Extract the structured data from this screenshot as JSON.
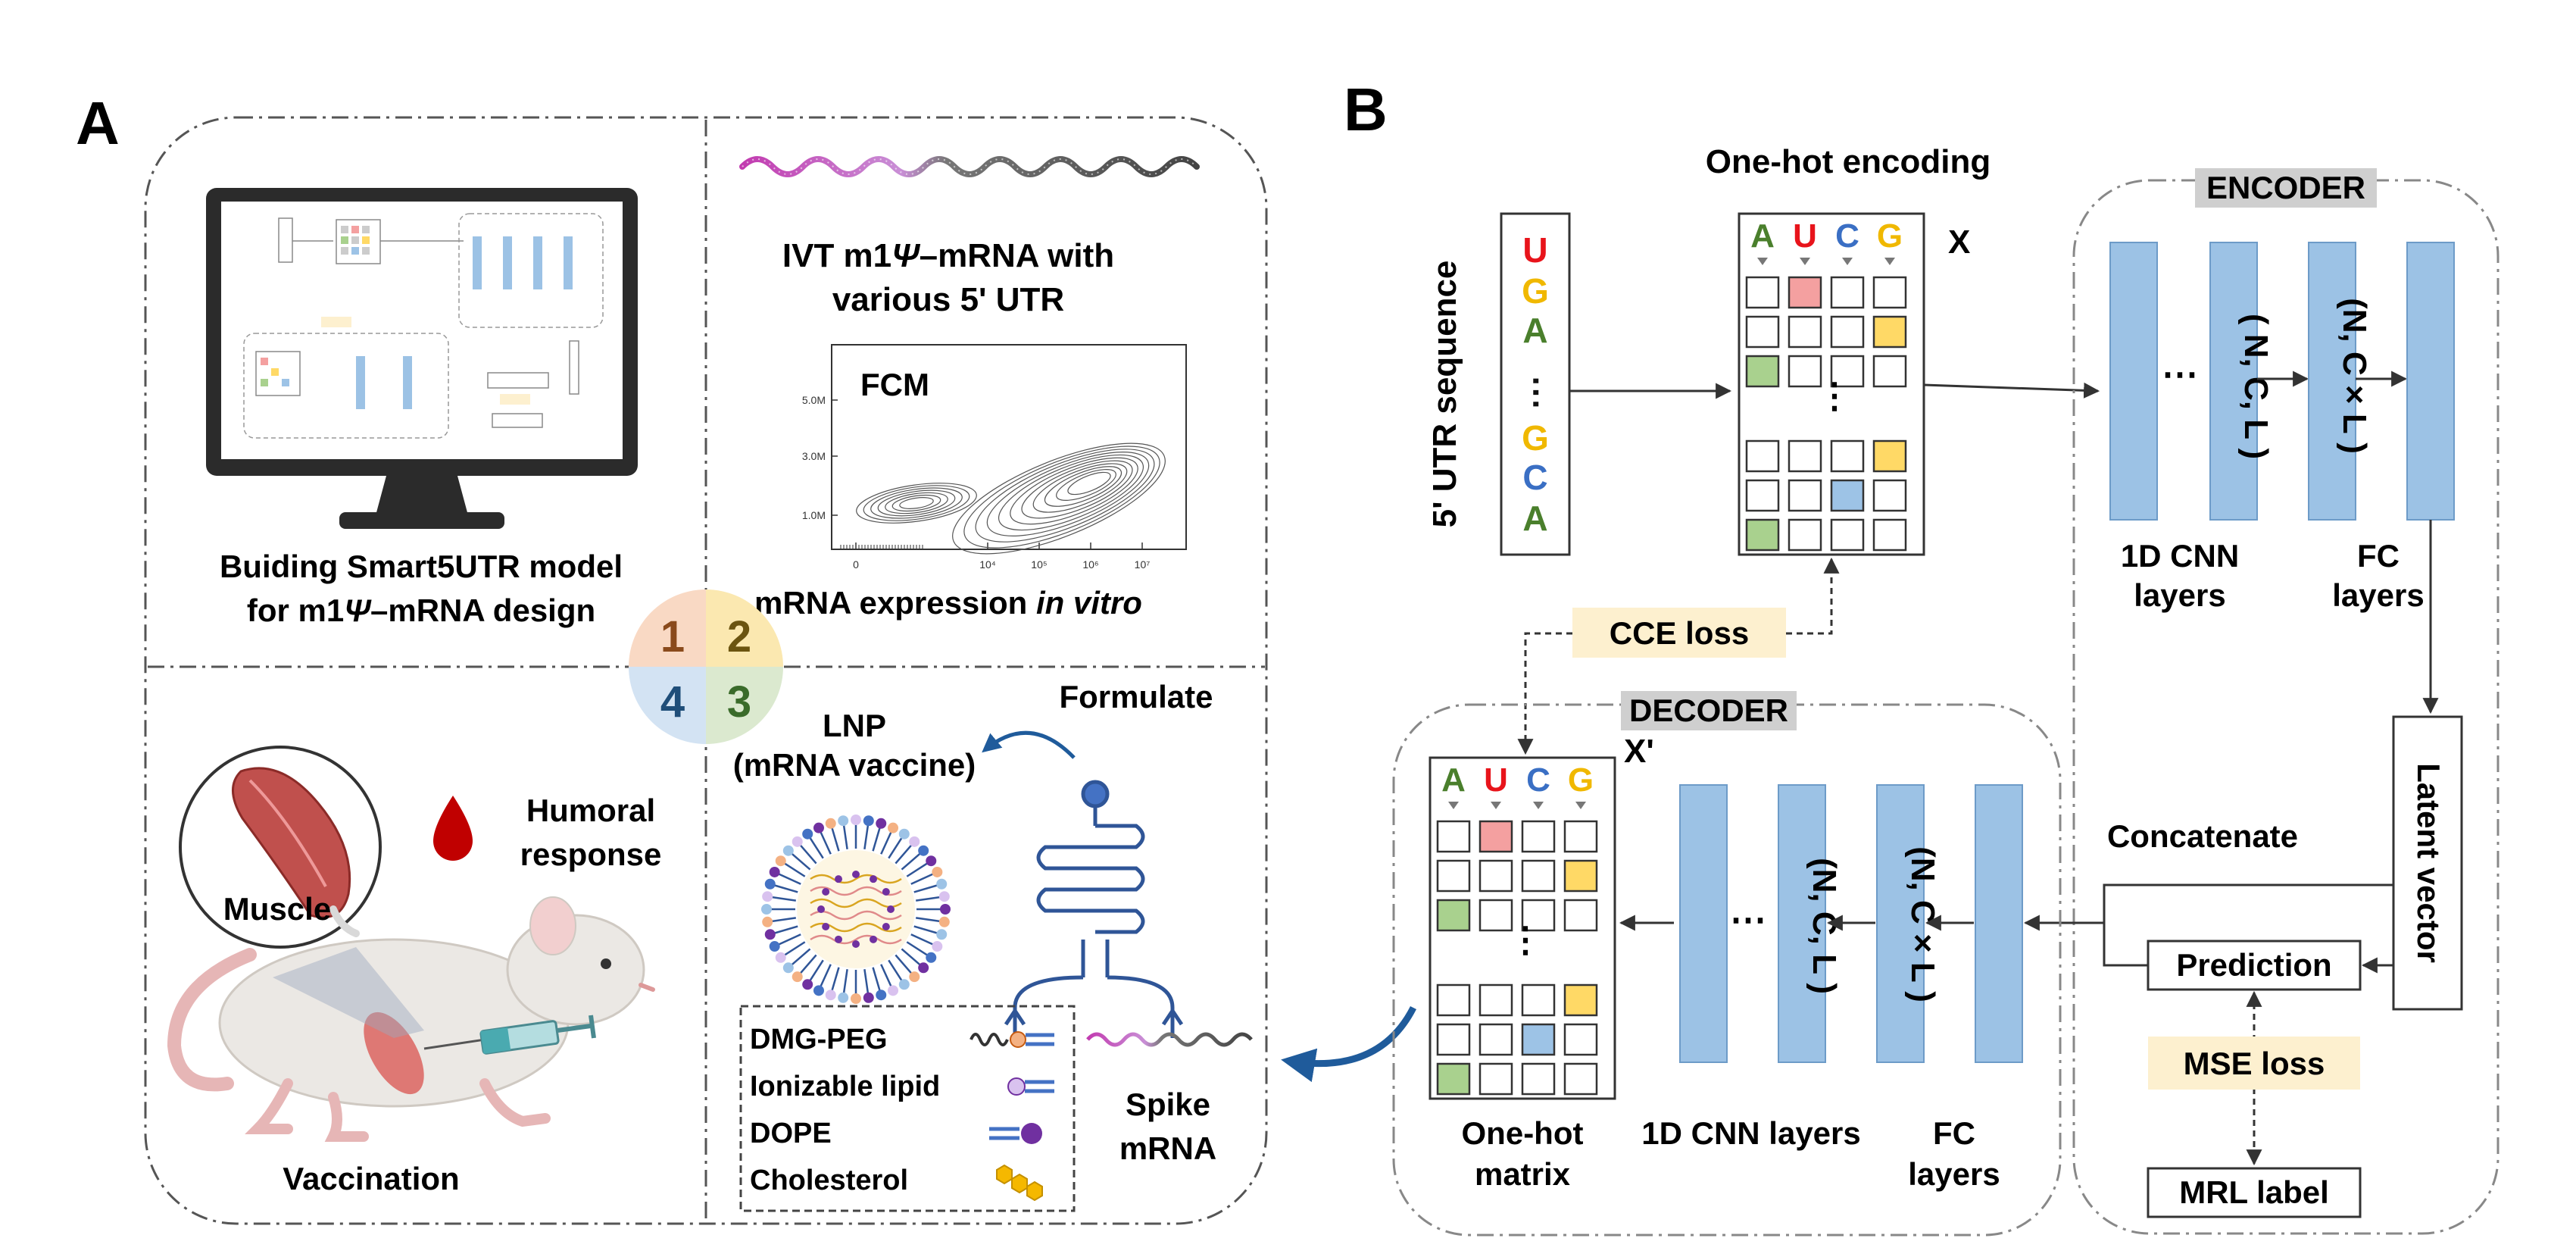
{
  "panel_a": {
    "letter": "A",
    "q1": {
      "caption_line1": "Buiding Smart5UTR model",
      "caption_line2_pre": "for m1",
      "caption_line2_psi": "Ψ",
      "caption_line2_post": "–mRNA design"
    },
    "q2": {
      "title_line1_pre": "IVT m1",
      "title_line1_psi": "Ψ",
      "title_line1_post": "–mRNA with",
      "title_line2": "various 5' UTR",
      "fcm_label": "FCM",
      "y_ticks": [
        "5.0M",
        "3.0M",
        "1.0M"
      ],
      "x_ticks": [
        "0",
        "10⁴",
        "10⁵",
        "10⁶",
        "10⁷"
      ],
      "caption_pre": "mRNA expression ",
      "caption_italic": "in vitro"
    },
    "q3": {
      "lnp_line1": "LNP",
      "lnp_line2": "(mRNA vaccine)",
      "formulate": "Formulate",
      "spike_line1": "Spike",
      "spike_line2": "mRNA",
      "components": [
        "DMG-PEG",
        "Ionizable lipid",
        "DOPE",
        "Cholesterol"
      ]
    },
    "q4": {
      "muscle": "Muscle",
      "humoral_line1": "Humoral",
      "humoral_line2": "response",
      "vaccination": "Vaccination"
    },
    "center_numbers": [
      "1",
      "2",
      "4",
      "3"
    ],
    "center_colors": [
      "#f9d9c4",
      "#fbe8b0",
      "#d3e3f3",
      "#dbe9cf"
    ]
  },
  "panel_b": {
    "letter": "B",
    "sequence_label": "5' UTR sequence",
    "sequence": [
      "U",
      "G",
      "A",
      "⋯",
      "G",
      "C",
      "A"
    ],
    "sequence_colors": [
      "#e8141b",
      "#f0b800",
      "#4a7f2c",
      "#111111",
      "#f0b800",
      "#3a6fc4",
      "#4a7f2c"
    ],
    "onehot_title": "One-hot encoding",
    "bases": [
      "A",
      "U",
      "C",
      "G"
    ],
    "base_colors": [
      "#4a7f2c",
      "#e8141b",
      "#3a6fc4",
      "#f0b800"
    ],
    "x_label": "X",
    "x_prime_label": "X'",
    "encoder_title": "ENCODER",
    "decoder_title": "DECODER",
    "enc_shape1": "( N, C, L )",
    "enc_shape2": "(N, C × L )",
    "enc_cnn_line1": "1D CNN",
    "enc_cnn_line2": "layers",
    "enc_fc_line1": "FC",
    "enc_fc_line2": "layers",
    "latent": "Latent vector",
    "concatenate": "Concatenate",
    "prediction": "Prediction",
    "mse_loss": "MSE loss",
    "mrl_label": "MRL label",
    "cce_loss": "CCE loss",
    "dec_shape1": "(N, C, L )",
    "dec_shape2": "(N, C × L )",
    "onehot_matrix_line1": "One-hot",
    "onehot_matrix_line2": "matrix",
    "dec_cnn": "1D CNN layers",
    "dec_fc_line1": "FC",
    "dec_fc_line2": "layers",
    "ellipsis": "⋯",
    "vdots": "⋮"
  },
  "colors": {
    "layer_blue": "#9cc2e5",
    "layer_stroke": "#6d9bc8",
    "loss_fill": "#fdf0cf",
    "header_gray": "#cfcfcf",
    "cell_red": "#f4a0a0",
    "cell_yellow": "#ffd966",
    "cell_green": "#a9d18e",
    "cell_blue": "#9dc3e6",
    "arrow_blue": "#1f5b9b"
  },
  "icons": [
    "monitor-icon",
    "mrna-strand-icon",
    "flow-contour-plot",
    "lnp-particle-icon",
    "stem-loop-rna-icon",
    "muscle-icon",
    "blood-drop-icon",
    "mouse-icon",
    "syringe-icon"
  ]
}
